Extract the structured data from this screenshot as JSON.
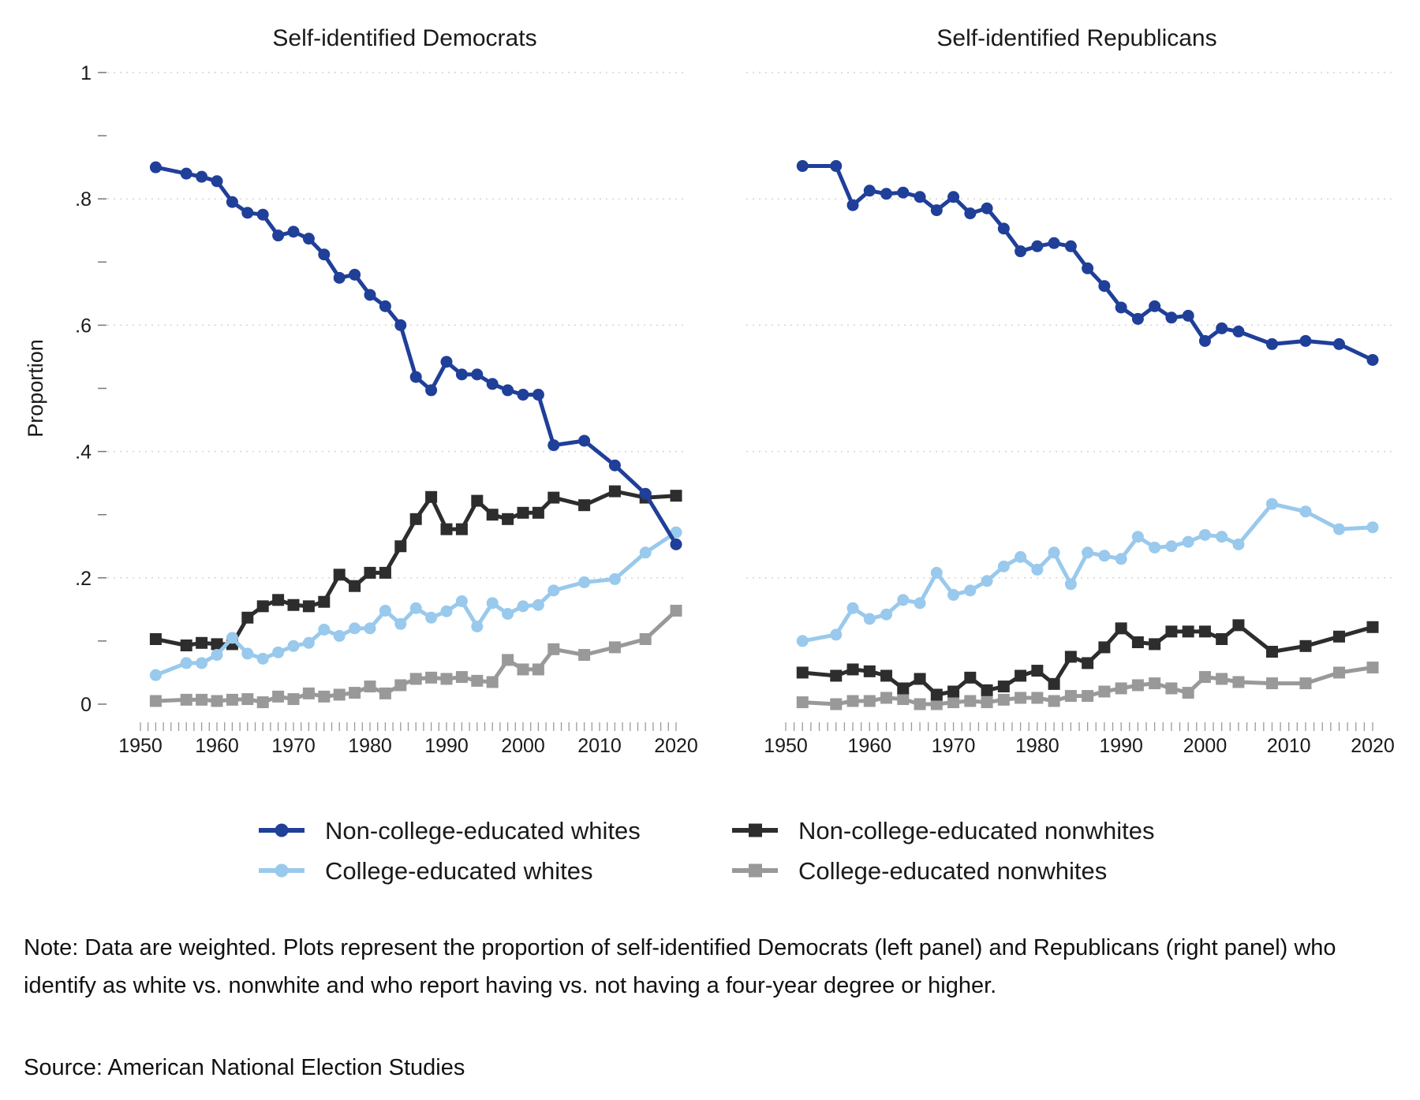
{
  "chart_data": [
    {
      "type": "line",
      "title": "Self-identified Democrats",
      "ylabel": "Proportion",
      "xlim": [
        1950,
        2020
      ],
      "ylim": [
        0,
        1
      ],
      "x_ticks": [
        1950,
        1960,
        1970,
        1980,
        1990,
        2000,
        2010,
        2020
      ],
      "y_ticks": [
        {
          "value": 0,
          "label": "0"
        },
        {
          "value": 0.2,
          "label": ".2"
        },
        {
          "value": 0.4,
          "label": ".4"
        },
        {
          "value": 0.6,
          "label": ".6"
        },
        {
          "value": 0.8,
          "label": ".8"
        },
        {
          "value": 1,
          "label": "1"
        }
      ],
      "grid": true,
      "series": [
        {
          "key": "ncw",
          "x": [
            1952,
            1956,
            1958,
            1960,
            1962,
            1964,
            1966,
            1968,
            1970,
            1972,
            1974,
            1976,
            1978,
            1980,
            1982,
            1984,
            1986,
            1988,
            1990,
            1992,
            1994,
            1996,
            1998,
            2000,
            2002,
            2004,
            2008,
            2012,
            2016,
            2020
          ],
          "y": [
            0.85,
            0.84,
            0.835,
            0.828,
            0.795,
            0.778,
            0.775,
            0.742,
            0.748,
            0.737,
            0.712,
            0.675,
            0.68,
            0.648,
            0.63,
            0.6,
            0.518,
            0.497,
            0.542,
            0.522,
            0.522,
            0.507,
            0.497,
            0.49,
            0.49,
            0.41,
            0.417,
            0.378,
            0.333,
            0.253
          ]
        },
        {
          "key": "cw",
          "x": [
            1952,
            1956,
            1958,
            1960,
            1962,
            1964,
            1966,
            1968,
            1970,
            1972,
            1974,
            1976,
            1978,
            1980,
            1982,
            1984,
            1986,
            1988,
            1990,
            1992,
            1994,
            1996,
            1998,
            2000,
            2002,
            2004,
            2008,
            2012,
            2016,
            2020
          ],
          "y": [
            0.046,
            0.065,
            0.065,
            0.078,
            0.105,
            0.08,
            0.072,
            0.082,
            0.092,
            0.097,
            0.118,
            0.108,
            0.12,
            0.12,
            0.148,
            0.127,
            0.152,
            0.137,
            0.147,
            0.163,
            0.123,
            0.16,
            0.143,
            0.155,
            0.157,
            0.18,
            0.193,
            0.198,
            0.24,
            0.272
          ]
        },
        {
          "key": "ncn",
          "x": [
            1952,
            1956,
            1958,
            1960,
            1962,
            1964,
            1966,
            1968,
            1970,
            1972,
            1974,
            1976,
            1978,
            1980,
            1982,
            1984,
            1986,
            1988,
            1990,
            1992,
            1994,
            1996,
            1998,
            2000,
            2002,
            2004,
            2008,
            2012,
            2016,
            2020
          ],
          "y": [
            0.103,
            0.093,
            0.097,
            0.095,
            0.095,
            0.137,
            0.155,
            0.165,
            0.157,
            0.155,
            0.162,
            0.205,
            0.187,
            0.208,
            0.208,
            0.25,
            0.293,
            0.328,
            0.277,
            0.277,
            0.322,
            0.3,
            0.293,
            0.303,
            0.303,
            0.327,
            0.315,
            0.337,
            0.327,
            0.33
          ]
        },
        {
          "key": "cn",
          "x": [
            1952,
            1956,
            1958,
            1960,
            1962,
            1964,
            1966,
            1968,
            1970,
            1972,
            1974,
            1976,
            1978,
            1980,
            1982,
            1984,
            1986,
            1988,
            1990,
            1992,
            1994,
            1996,
            1998,
            2000,
            2002,
            2004,
            2008,
            2012,
            2016,
            2020
          ],
          "y": [
            0.005,
            0.007,
            0.007,
            0.005,
            0.007,
            0.008,
            0.003,
            0.012,
            0.008,
            0.017,
            0.012,
            0.015,
            0.018,
            0.028,
            0.017,
            0.03,
            0.04,
            0.042,
            0.04,
            0.043,
            0.037,
            0.035,
            0.07,
            0.055,
            0.055,
            0.087,
            0.078,
            0.09,
            0.103,
            0.148
          ]
        }
      ]
    },
    {
      "type": "line",
      "title": "Self-identified Republicans",
      "xlim": [
        1950,
        2020
      ],
      "ylim": [
        0,
        1
      ],
      "x_ticks": [
        1950,
        1960,
        1970,
        1980,
        1990,
        2000,
        2010,
        2020
      ],
      "grid": true,
      "series": [
        {
          "key": "ncw",
          "x": [
            1952,
            1956,
            1958,
            1960,
            1962,
            1964,
            1966,
            1968,
            1970,
            1972,
            1974,
            1976,
            1978,
            1980,
            1982,
            1984,
            1986,
            1988,
            1990,
            1992,
            1994,
            1996,
            1998,
            2000,
            2002,
            2004,
            2008,
            2012,
            2016,
            2020
          ],
          "y": [
            0.852,
            0.852,
            0.79,
            0.813,
            0.808,
            0.81,
            0.803,
            0.782,
            0.803,
            0.777,
            0.785,
            0.753,
            0.717,
            0.725,
            0.73,
            0.725,
            0.69,
            0.662,
            0.628,
            0.61,
            0.63,
            0.612,
            0.615,
            0.575,
            0.595,
            0.59,
            0.57,
            0.575,
            0.57,
            0.545
          ]
        },
        {
          "key": "cw",
          "x": [
            1952,
            1956,
            1958,
            1960,
            1962,
            1964,
            1966,
            1968,
            1970,
            1972,
            1974,
            1976,
            1978,
            1980,
            1982,
            1984,
            1986,
            1988,
            1990,
            1992,
            1994,
            1996,
            1998,
            2000,
            2002,
            2004,
            2008,
            2012,
            2016,
            2020
          ],
          "y": [
            0.1,
            0.11,
            0.152,
            0.135,
            0.142,
            0.165,
            0.16,
            0.208,
            0.173,
            0.18,
            0.195,
            0.218,
            0.233,
            0.213,
            0.24,
            0.19,
            0.24,
            0.235,
            0.23,
            0.265,
            0.248,
            0.25,
            0.257,
            0.268,
            0.265,
            0.253,
            0.317,
            0.305,
            0.277,
            0.28
          ]
        },
        {
          "key": "ncn",
          "x": [
            1952,
            1956,
            1958,
            1960,
            1962,
            1964,
            1966,
            1968,
            1970,
            1972,
            1974,
            1976,
            1978,
            1980,
            1982,
            1984,
            1986,
            1988,
            1990,
            1992,
            1994,
            1996,
            1998,
            2000,
            2002,
            2004,
            2008,
            2012,
            2016,
            2020
          ],
          "y": [
            0.05,
            0.045,
            0.055,
            0.052,
            0.045,
            0.025,
            0.04,
            0.015,
            0.02,
            0.042,
            0.022,
            0.028,
            0.045,
            0.053,
            0.032,
            0.075,
            0.065,
            0.09,
            0.12,
            0.098,
            0.095,
            0.115,
            0.115,
            0.115,
            0.103,
            0.125,
            0.083,
            0.092,
            0.107,
            0.122
          ]
        },
        {
          "key": "cn",
          "x": [
            1952,
            1956,
            1958,
            1960,
            1962,
            1964,
            1966,
            1968,
            1970,
            1972,
            1974,
            1976,
            1978,
            1980,
            1982,
            1984,
            1986,
            1988,
            1990,
            1992,
            1994,
            1996,
            1998,
            2000,
            2002,
            2004,
            2008,
            2012,
            2016,
            2020
          ],
          "y": [
            0.003,
            0.0,
            0.005,
            0.005,
            0.01,
            0.008,
            0.0,
            0.0,
            0.003,
            0.005,
            0.003,
            0.007,
            0.01,
            0.01,
            0.005,
            0.013,
            0.013,
            0.02,
            0.025,
            0.03,
            0.033,
            0.025,
            0.018,
            0.043,
            0.04,
            0.035,
            0.033,
            0.033,
            0.05,
            0.058
          ]
        }
      ]
    }
  ],
  "legend": {
    "placement": "bottom",
    "items": [
      {
        "key": "ncw",
        "label": "Non-college-educated whites",
        "color": "#1f3f99",
        "marker": "circle"
      },
      {
        "key": "ncn",
        "label": "Non-college-educated nonwhites",
        "color": "#2d2d2d",
        "marker": "square"
      },
      {
        "key": "cw",
        "label": "College-educated whites",
        "color": "#99c9ec",
        "marker": "circle"
      },
      {
        "key": "cn",
        "label": "College-educated nonwhites",
        "color": "#999999",
        "marker": "square"
      }
    ]
  },
  "note": "Note: Data are weighted. Plots represent the proportion of self-identified Democrats (left panel) and Republicans (right panel) who identify as white vs. nonwhite and who report having vs. not having a four-year degree or higher.",
  "source": "Source: American National Election Studies"
}
